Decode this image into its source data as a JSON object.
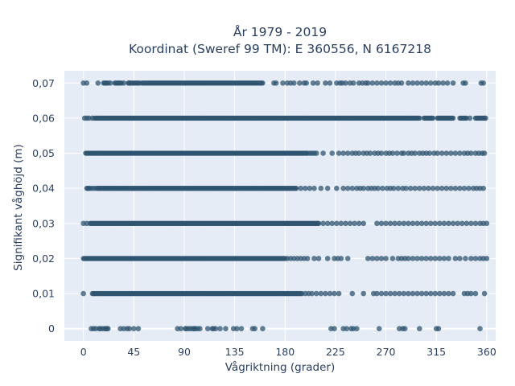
{
  "chart_data": {
    "type": "scatter",
    "title_line1": "År 1979 - 2019",
    "title_line2": "Koordinat (Sweref 99 TM): E 360556, N 6167218",
    "xlabel": "Vågriktning (grader)",
    "ylabel": "Signifikant våghöjd (m)",
    "xlim": [
      -17,
      368
    ],
    "ylim": [
      -0.0035,
      0.0735
    ],
    "xticks": [
      0,
      45,
      90,
      135,
      180,
      225,
      270,
      315,
      360
    ],
    "xtick_labels": [
      "0",
      "45",
      "90",
      "135",
      "180",
      "225",
      "270",
      "315",
      "360"
    ],
    "yticks": [
      0,
      0.01,
      0.02,
      0.03,
      0.04,
      0.05,
      0.06,
      0.07
    ],
    "ytick_labels": [
      "0",
      "0,01",
      "0,02",
      "0,03",
      "0,04",
      "0,05",
      "0,06",
      "0,07"
    ],
    "grid": true,
    "legend": false,
    "marker_color": "#2f5470",
    "plot_background": "#e5ecf6",
    "series": [
      {
        "bands": [
          {
            "y": 0.07,
            "dense_ranges": [
              [
                18,
                22
              ],
              [
                28,
                34
              ],
              [
                40,
                50
              ],
              [
                52,
                160
              ]
            ],
            "points": [
              0,
              3,
              13,
              24,
              36,
              41,
              170,
              172,
              178,
              182,
              185,
              188,
              193,
              197,
              199,
              205,
              209,
              216,
              220,
              226,
              229,
              231,
              234,
              238,
              241,
              246,
              249,
              252,
              254,
              258,
              262,
              266,
              270,
              274,
              278,
              281,
              284,
              290,
              294,
              298,
              302,
              306,
              310,
              314,
              317,
              321,
              325,
              330,
              339,
              341,
              355,
              357
            ]
          },
          {
            "y": 0.06,
            "dense_ranges": [
              [
                10,
                300
              ],
              [
                304,
                312
              ],
              [
                316,
                330
              ],
              [
                336,
                342
              ],
              [
                350,
                358
              ]
            ],
            "points": [
              1,
              3,
              5,
              8,
              345,
              359
            ]
          },
          {
            "y": 0.05,
            "dense_ranges": [
              [
                2,
                200
              ]
            ],
            "points": [
              202,
              204,
              206,
              208,
              214,
              222,
              228,
              232,
              236,
              240,
              243,
              246,
              250,
              253,
              256,
              260,
              263,
              266,
              270,
              273,
              276,
              280,
              284,
              286,
              290,
              293,
              296,
              300,
              303,
              306,
              309,
              313,
              316,
              320,
              324,
              328,
              332,
              336,
              340,
              343,
              346,
              350,
              353,
              356,
              358
            ]
          },
          {
            "y": 0.04,
            "dense_ranges": [
              [
                3,
                6
              ],
              [
                12,
                190
              ]
            ],
            "points": [
              8,
              10,
              194,
              198,
              202,
              206,
              212,
              218,
              226,
              232,
              236,
              240,
              244,
              247,
              250,
              254,
              257,
              260,
              263,
              267,
              271,
              274,
              277,
              281,
              285,
              288,
              292,
              296,
              300,
              304,
              308,
              312,
              316,
              320,
              324,
              328,
              332,
              336,
              340,
              344,
              348,
              351,
              354,
              357
            ]
          },
          {
            "y": 0.03,
            "dense_ranges": [
              [
                6,
                210
              ]
            ],
            "points": [
              0,
              3,
              214,
              218,
              222,
              226,
              230,
              234,
              238,
              242,
              246,
              250,
              262,
              266,
              270,
              274,
              278,
              282,
              286,
              290,
              294,
              298,
              302,
              306,
              310,
              314,
              318,
              322,
              326,
              330,
              334,
              338,
              342,
              346,
              350,
              354,
              357,
              360
            ]
          },
          {
            "y": 0.02,
            "dense_ranges": [
              [
                0,
                180
              ]
            ],
            "points": [
              182,
              185,
              188,
              191,
              194,
              197,
              200,
              206,
              210,
              218,
              224,
              227,
              230,
              236,
              254,
              258,
              262,
              266,
              270,
              276,
              281,
              284,
              287,
              290,
              294,
              298,
              302,
              306,
              310,
              314,
              318,
              322,
              326,
              332,
              336,
              341,
              346,
              350,
              354,
              357,
              360
            ]
          },
          {
            "y": 0.01,
            "dense_ranges": [
              [
                8,
                195
              ]
            ],
            "points": [
              0,
              198,
              201,
              204,
              208,
              212,
              216,
              220,
              224,
              228,
              240,
              250,
              259,
              262,
              266,
              270,
              274,
              278,
              282,
              286,
              290,
              294,
              298,
              302,
              306,
              310,
              314,
              318,
              322,
              326,
              330,
              340,
              343,
              346,
              350,
              358
            ]
          },
          {
            "y": 0.0,
            "dense_ranges": [],
            "points": [
              7,
              9,
              11,
              14,
              15,
              17,
              19,
              20,
              21,
              22,
              33,
              36,
              39,
              41,
              45,
              49,
              84,
              87,
              91,
              92,
              94,
              96,
              98,
              99,
              100,
              102,
              104,
              111,
              115,
              116,
              118,
              122,
              127,
              134,
              137,
              141,
              151,
              153,
              160,
              221,
              224,
              232,
              235,
              239,
              241,
              244,
              264,
              282,
              285,
              287,
              300,
              315,
              317,
              354
            ]
          }
        ]
      }
    ]
  }
}
